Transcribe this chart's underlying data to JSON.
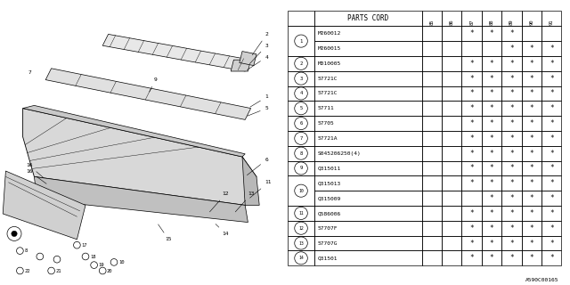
{
  "code": "A590C00165",
  "table_header_part": "PARTS CORD",
  "table_years": [
    "85",
    "86",
    "87",
    "88",
    "89",
    "90",
    "91"
  ],
  "rows": [
    {
      "num": "1",
      "part": "M260012",
      "marks": [
        0,
        0,
        1,
        1,
        1,
        0,
        0
      ]
    },
    {
      "num": "",
      "part": "M260015",
      "marks": [
        0,
        0,
        0,
        0,
        1,
        1,
        1
      ]
    },
    {
      "num": "2",
      "part": "M010005",
      "marks": [
        0,
        0,
        1,
        1,
        1,
        1,
        1
      ]
    },
    {
      "num": "3",
      "part": "57721C",
      "marks": [
        0,
        0,
        1,
        1,
        1,
        1,
        1
      ]
    },
    {
      "num": "4",
      "part": "57721C",
      "marks": [
        0,
        0,
        1,
        1,
        1,
        1,
        1
      ]
    },
    {
      "num": "5",
      "part": "57711",
      "marks": [
        0,
        0,
        1,
        1,
        1,
        1,
        1
      ]
    },
    {
      "num": "6",
      "part": "57705",
      "marks": [
        0,
        0,
        1,
        1,
        1,
        1,
        1
      ]
    },
    {
      "num": "7",
      "part": "57721A",
      "marks": [
        0,
        0,
        1,
        1,
        1,
        1,
        1
      ]
    },
    {
      "num": "8",
      "part": "S045206250(4)",
      "marks": [
        0,
        0,
        1,
        1,
        1,
        1,
        1
      ]
    },
    {
      "num": "9",
      "part": "Q315011",
      "marks": [
        0,
        0,
        1,
        1,
        1,
        1,
        1
      ]
    },
    {
      "num": "10",
      "part": "Q315013",
      "marks": [
        0,
        0,
        1,
        1,
        1,
        1,
        1
      ]
    },
    {
      "num": "",
      "part": "Q315009",
      "marks": [
        0,
        0,
        0,
        1,
        1,
        1,
        1
      ]
    },
    {
      "num": "11",
      "part": "Q586006",
      "marks": [
        0,
        0,
        1,
        1,
        1,
        1,
        1
      ]
    },
    {
      "num": "12",
      "part": "57707F",
      "marks": [
        0,
        0,
        1,
        1,
        1,
        1,
        1
      ]
    },
    {
      "num": "13",
      "part": "57707G",
      "marks": [
        0,
        0,
        1,
        1,
        1,
        1,
        1
      ]
    },
    {
      "num": "14",
      "part": "Q31501",
      "marks": [
        0,
        0,
        1,
        1,
        1,
        1,
        1
      ]
    }
  ],
  "bg_color": "#ffffff",
  "lc": "#000000"
}
